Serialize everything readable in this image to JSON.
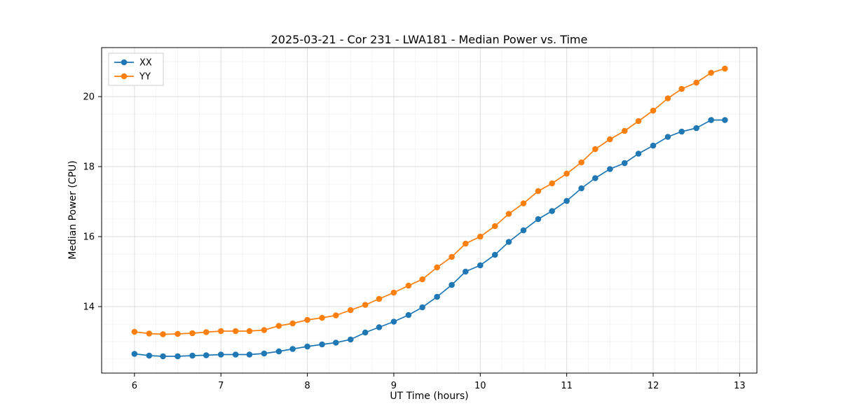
{
  "chart_data": {
    "type": "line",
    "title": "2025-03-21 - Cor 231 - LWA181 - Median Power vs. Time",
    "xlabel": "UT Time (hours)",
    "ylabel": "Median Power (CPU)",
    "xlim": [
      5.62,
      13.2
    ],
    "ylim": [
      12.1,
      21.4
    ],
    "x_ticks": [
      6,
      7,
      8,
      9,
      10,
      11,
      12,
      13
    ],
    "y_ticks": [
      14,
      16,
      18,
      20
    ],
    "grid": true,
    "legend_position": "upper left",
    "x": [
      6.0,
      6.17,
      6.33,
      6.5,
      6.67,
      6.83,
      7.0,
      7.17,
      7.33,
      7.5,
      7.67,
      7.83,
      8.0,
      8.17,
      8.33,
      8.5,
      8.67,
      8.83,
      9.0,
      9.17,
      9.33,
      9.5,
      9.67,
      9.83,
      10.0,
      10.17,
      10.33,
      10.5,
      10.67,
      10.83,
      11.0,
      11.17,
      11.33,
      11.5,
      11.67,
      11.83,
      12.0,
      12.17,
      12.33,
      12.5,
      12.67,
      12.83
    ],
    "series": [
      {
        "name": "XX",
        "color": "#1f77b4",
        "values": [
          12.65,
          12.6,
          12.58,
          12.58,
          12.6,
          12.61,
          12.63,
          12.63,
          12.63,
          12.66,
          12.72,
          12.79,
          12.86,
          12.92,
          12.97,
          13.06,
          13.26,
          13.41,
          13.57,
          13.76,
          13.98,
          14.28,
          14.62,
          15.0,
          15.18,
          15.48,
          15.85,
          16.18,
          16.5,
          16.73,
          17.02,
          17.38,
          17.67,
          17.93,
          18.1,
          18.37,
          18.6,
          18.85,
          19.0,
          19.1,
          19.33,
          19.33
        ]
      },
      {
        "name": "YY",
        "color": "#ff7f0e",
        "values": [
          13.28,
          13.23,
          13.21,
          13.22,
          13.24,
          13.27,
          13.3,
          13.3,
          13.3,
          13.33,
          13.45,
          13.52,
          13.62,
          13.68,
          13.75,
          13.9,
          14.05,
          14.22,
          14.4,
          14.6,
          14.78,
          15.12,
          15.42,
          15.8,
          16.0,
          16.3,
          16.65,
          16.95,
          17.3,
          17.52,
          17.8,
          18.12,
          18.5,
          18.78,
          19.02,
          19.3,
          19.6,
          19.95,
          20.22,
          20.4,
          20.68,
          20.8
        ]
      }
    ]
  }
}
